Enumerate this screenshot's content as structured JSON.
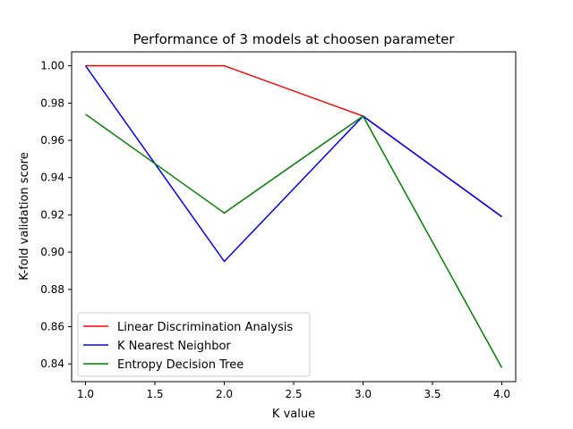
{
  "chart_data": {
    "type": "line",
    "title": "Performance of 3 models at choosen parameter",
    "xlabel": "K value",
    "ylabel": "K-fold validation score",
    "x": [
      1.0,
      2.0,
      3.0,
      4.0
    ],
    "xlim": [
      0.9,
      4.1
    ],
    "ylim": [
      0.8305,
      1.0075
    ],
    "xticks": [
      1.0,
      1.5,
      2.0,
      2.5,
      3.0,
      3.5,
      4.0
    ],
    "xtick_labels": [
      "1.0",
      "1.5",
      "2.0",
      "2.5",
      "3.0",
      "3.5",
      "4.0"
    ],
    "yticks": [
      0.84,
      0.86,
      0.88,
      0.9,
      0.92,
      0.94,
      0.96,
      0.98,
      1.0
    ],
    "ytick_labels": [
      "0.84",
      "0.86",
      "0.88",
      "0.90",
      "0.92",
      "0.94",
      "0.96",
      "0.98",
      "1.00"
    ],
    "grid": false,
    "legend_position": "lower-left",
    "series": [
      {
        "name": "Linear Discrimination Analysis",
        "color": "#ff0000",
        "values": [
          1.0,
          1.0,
          0.973,
          0.919
        ]
      },
      {
        "name": "K Nearest Neighbor",
        "color": "#0000ff",
        "values": [
          1.0,
          0.895,
          0.973,
          0.919
        ]
      },
      {
        "name": "Entropy Decision Tree",
        "color": "#008000",
        "values": [
          0.974,
          0.921,
          0.973,
          0.838
        ]
      }
    ]
  }
}
